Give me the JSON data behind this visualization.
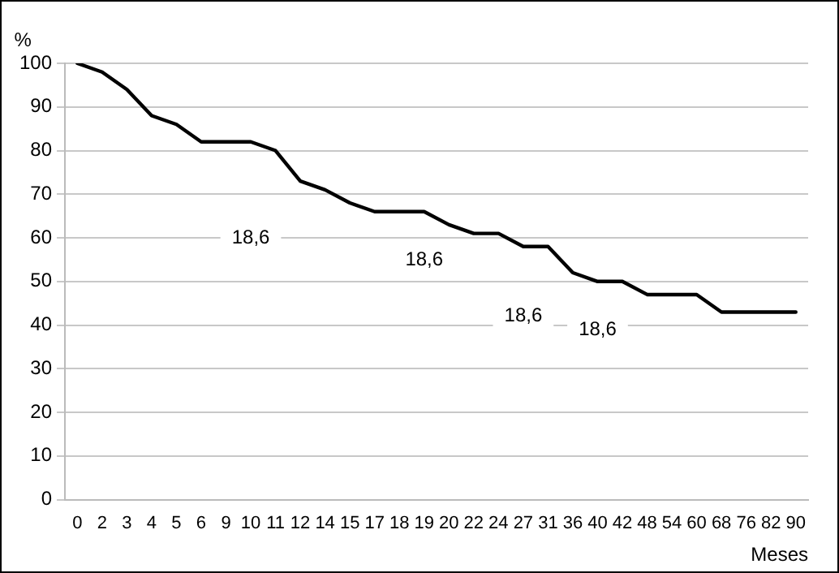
{
  "chart_data": {
    "type": "line",
    "xlabel": "Meses",
    "ylabel": "%",
    "categories": [
      "0",
      "2",
      "3",
      "4",
      "5",
      "6",
      "9",
      "10",
      "11",
      "12",
      "14",
      "15",
      "17",
      "18",
      "19",
      "20",
      "22",
      "24",
      "27",
      "31",
      "36",
      "40",
      "42",
      "48",
      "54",
      "60",
      "68",
      "76",
      "82",
      "90"
    ],
    "series": [
      {
        "color": "#000000",
        "values": [
          100,
          98,
          94,
          88,
          86,
          82,
          82,
          82,
          80,
          73,
          71,
          68,
          66,
          66,
          66,
          63,
          61,
          61,
          58,
          58,
          52,
          50,
          50,
          47,
          47,
          47,
          43,
          43,
          43,
          43
        ]
      }
    ],
    "ylim": [
      0,
      100
    ],
    "yticks": [
      0,
      10,
      20,
      30,
      40,
      50,
      60,
      70,
      80,
      90,
      100
    ],
    "grid": "y",
    "legend": false,
    "marker": "none",
    "line_style": "solid",
    "annotations": [
      {
        "text": "18,6",
        "x": "10",
        "y": 60
      },
      {
        "text": "18,6",
        "x": "19",
        "y": 55
      },
      {
        "text": "18,6",
        "x": "27",
        "y": 42
      },
      {
        "text": "18,6",
        "x": "40",
        "y": 39
      }
    ]
  }
}
